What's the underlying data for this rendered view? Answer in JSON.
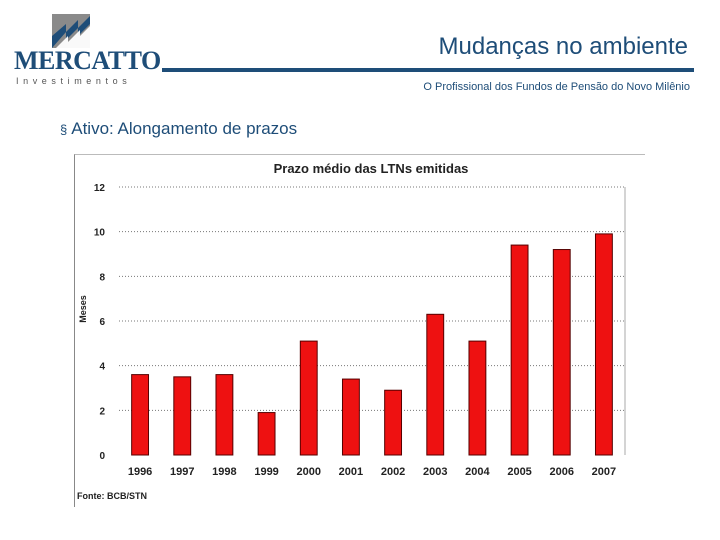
{
  "logo": {
    "brand": "MERCATTO",
    "tagline": "Investimentos"
  },
  "header": {
    "title": "Mudanças no ambiente",
    "subtitle": "O Profissional dos Fundos de Pensão do Novo Milênio"
  },
  "bullet": {
    "text": "Ativo: Alongamento de prazos"
  },
  "colors": {
    "primary": "#1e4d78",
    "bar": "#ee1111",
    "bar_stroke": "#550000"
  },
  "chart_data": {
    "type": "bar",
    "title": "Prazo médio das LTNs emitidas",
    "xlabel": "",
    "ylabel": "Meses",
    "ylim": [
      0,
      12
    ],
    "yticks": [
      "0",
      "2",
      "4",
      "6",
      "8",
      "10",
      "12"
    ],
    "categories": [
      "1996",
      "1997",
      "1998",
      "1999",
      "2000",
      "2001",
      "2002",
      "2003",
      "2004",
      "2005",
      "2006",
      "2007"
    ],
    "values": [
      3.6,
      3.5,
      3.6,
      1.9,
      5.1,
      3.4,
      2.9,
      6.3,
      5.1,
      9.4,
      9.2,
      9.9
    ],
    "grid": true,
    "source": "Fonte: BCB/STN"
  }
}
